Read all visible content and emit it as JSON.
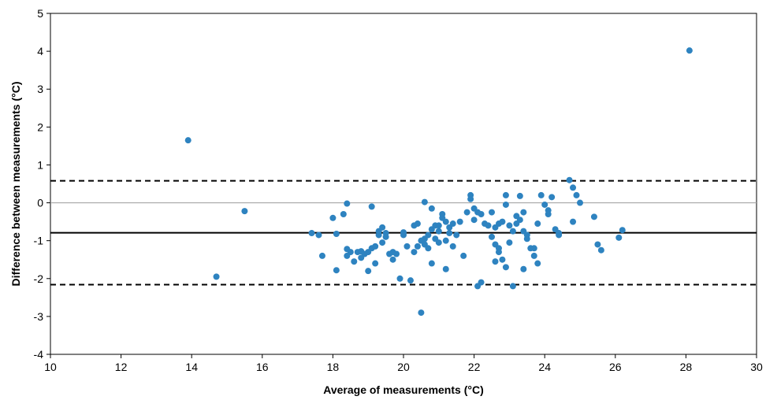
{
  "chart_data": {
    "type": "scatter",
    "title": "",
    "xlabel": "Average of measurements (°C)",
    "ylabel": "Difference between measurements (°C)",
    "xlim": [
      10,
      30
    ],
    "ylim": [
      -4,
      5
    ],
    "x_ticks": [
      "10",
      "12",
      "14",
      "16",
      "18",
      "20",
      "22",
      "24",
      "26",
      "28",
      "30"
    ],
    "y_ticks": [
      "-4",
      "-3",
      "-2",
      "-1",
      "0",
      "1",
      "2",
      "3",
      "4",
      "5"
    ],
    "grid": false,
    "legend": "none",
    "colors": {
      "points": "#2e83c0",
      "zero_line": "#a6a6a6",
      "mean_line": "#000000",
      "limit_lines": "#000000"
    },
    "reference_lines": [
      {
        "y": 0,
        "style": "solid-gray"
      },
      {
        "y": -0.79,
        "style": "solid-black"
      },
      {
        "y": 0.58,
        "style": "dashed-black"
      },
      {
        "y": -2.16,
        "style": "dashed-black"
      }
    ],
    "points": [
      [
        13.9,
        1.65
      ],
      [
        14.7,
        -1.95
      ],
      [
        15.5,
        -0.22
      ],
      [
        28.1,
        4.02
      ],
      [
        17.4,
        -0.8
      ],
      [
        17.6,
        -0.85
      ],
      [
        17.7,
        -1.4
      ],
      [
        18.0,
        -0.4
      ],
      [
        18.1,
        -0.82
      ],
      [
        18.1,
        -1.78
      ],
      [
        18.3,
        -0.3
      ],
      [
        18.4,
        -0.02
      ],
      [
        18.4,
        -1.22
      ],
      [
        18.4,
        -1.4
      ],
      [
        18.5,
        -1.3
      ],
      [
        18.6,
        -1.55
      ],
      [
        18.7,
        -1.3
      ],
      [
        18.8,
        -1.45
      ],
      [
        18.8,
        -1.28
      ],
      [
        18.9,
        -1.35
      ],
      [
        19.0,
        -1.8
      ],
      [
        19.0,
        -1.3
      ],
      [
        19.1,
        -0.1
      ],
      [
        19.1,
        -1.2
      ],
      [
        19.2,
        -1.15
      ],
      [
        19.2,
        -1.6
      ],
      [
        19.3,
        -0.85
      ],
      [
        19.3,
        -0.75
      ],
      [
        19.4,
        -0.65
      ],
      [
        19.4,
        -1.05
      ],
      [
        19.5,
        -0.8
      ],
      [
        19.5,
        -0.9
      ],
      [
        19.6,
        -1.35
      ],
      [
        19.7,
        -1.3
      ],
      [
        19.7,
        -1.5
      ],
      [
        19.8,
        -1.35
      ],
      [
        19.9,
        -2.0
      ],
      [
        20.0,
        -0.85
      ],
      [
        20.0,
        -0.78
      ],
      [
        20.1,
        -1.15
      ],
      [
        20.2,
        -2.05
      ],
      [
        20.3,
        -0.6
      ],
      [
        20.3,
        -1.3
      ],
      [
        20.4,
        -0.55
      ],
      [
        20.4,
        -1.15
      ],
      [
        20.5,
        -1.0
      ],
      [
        20.5,
        -2.9
      ],
      [
        20.6,
        -0.95
      ],
      [
        20.6,
        -1.1
      ],
      [
        20.6,
        0.02
      ],
      [
        20.7,
        -1.2
      ],
      [
        20.7,
        -0.85
      ],
      [
        20.8,
        -1.6
      ],
      [
        20.8,
        -0.7
      ],
      [
        20.8,
        -0.15
      ],
      [
        20.9,
        -0.95
      ],
      [
        20.9,
        -0.6
      ],
      [
        21.0,
        -1.05
      ],
      [
        21.0,
        -0.75
      ],
      [
        21.0,
        -0.6
      ],
      [
        21.1,
        -0.4
      ],
      [
        21.1,
        -0.3
      ],
      [
        21.2,
        -1.75
      ],
      [
        21.2,
        -1.0
      ],
      [
        21.2,
        -0.5
      ],
      [
        21.3,
        -0.8
      ],
      [
        21.3,
        -0.65
      ],
      [
        21.4,
        -1.15
      ],
      [
        21.4,
        -0.55
      ],
      [
        21.5,
        -0.85
      ],
      [
        21.6,
        -0.5
      ],
      [
        21.7,
        -1.4
      ],
      [
        21.8,
        -0.25
      ],
      [
        21.9,
        0.2
      ],
      [
        21.9,
        0.1
      ],
      [
        22.0,
        -0.45
      ],
      [
        22.0,
        -0.15
      ],
      [
        22.1,
        -0.25
      ],
      [
        22.1,
        -2.2
      ],
      [
        22.2,
        -2.1
      ],
      [
        22.2,
        -0.3
      ],
      [
        22.3,
        -0.55
      ],
      [
        22.4,
        -0.6
      ],
      [
        22.5,
        -0.9
      ],
      [
        22.5,
        -0.25
      ],
      [
        22.6,
        -1.1
      ],
      [
        22.6,
        -1.55
      ],
      [
        22.6,
        -0.65
      ],
      [
        22.7,
        -1.2
      ],
      [
        22.7,
        -0.55
      ],
      [
        22.7,
        -1.3
      ],
      [
        22.8,
        -1.5
      ],
      [
        22.8,
        -0.5
      ],
      [
        22.9,
        -1.7
      ],
      [
        22.9,
        -0.05
      ],
      [
        22.9,
        0.2
      ],
      [
        23.0,
        -1.05
      ],
      [
        23.0,
        -0.6
      ],
      [
        23.1,
        -0.75
      ],
      [
        23.1,
        -2.2
      ],
      [
        23.2,
        -0.35
      ],
      [
        23.2,
        -0.55
      ],
      [
        23.3,
        0.18
      ],
      [
        23.3,
        -0.45
      ],
      [
        23.4,
        -0.25
      ],
      [
        23.4,
        -1.75
      ],
      [
        23.4,
        -0.75
      ],
      [
        23.5,
        -0.95
      ],
      [
        23.5,
        -0.85
      ],
      [
        23.6,
        -1.2
      ],
      [
        23.7,
        -1.4
      ],
      [
        23.7,
        -1.2
      ],
      [
        23.8,
        -1.6
      ],
      [
        23.8,
        -0.55
      ],
      [
        23.9,
        0.2
      ],
      [
        24.0,
        -0.05
      ],
      [
        24.1,
        -0.2
      ],
      [
        24.1,
        -0.3
      ],
      [
        24.2,
        0.15
      ],
      [
        24.3,
        -0.7
      ],
      [
        24.4,
        -0.85
      ],
      [
        24.4,
        -0.8
      ],
      [
        24.7,
        0.6
      ],
      [
        24.8,
        0.4
      ],
      [
        24.8,
        -0.5
      ],
      [
        24.9,
        0.2
      ],
      [
        25.0,
        0.0
      ],
      [
        25.4,
        -0.37
      ],
      [
        25.5,
        -1.1
      ],
      [
        25.6,
        -1.25
      ],
      [
        26.1,
        -0.92
      ],
      [
        26.2,
        -0.72
      ]
    ]
  }
}
